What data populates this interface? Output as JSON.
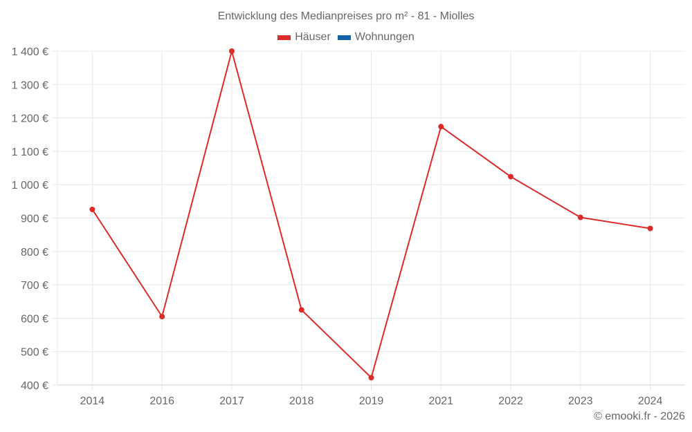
{
  "title": "Entwicklung des Medianpreises pro m² - 81 - Miolles",
  "legend": [
    {
      "label": "Häuser",
      "color": "#dd2a2a"
    },
    {
      "label": "Wohnungen",
      "color": "#1565a6"
    }
  ],
  "credit": "© emooki.fr - 2026",
  "colors": {
    "line": "#dd2a2a",
    "grid": "#e8e8e8",
    "axis": "#cccccc",
    "text": "#666666"
  },
  "chart_data": {
    "type": "line",
    "title": "Entwicklung des Medianpreises pro m² - 81 - Miolles",
    "xlabel": "",
    "ylabel": "",
    "categories": [
      "2014",
      "2016",
      "2017",
      "2018",
      "2019",
      "2021",
      "2022",
      "2023",
      "2024"
    ],
    "series": [
      {
        "name": "Häuser",
        "color": "#dd2a2a",
        "values": [
          926,
          605,
          1400,
          625,
          422,
          1174,
          1024,
          902,
          869
        ]
      },
      {
        "name": "Wohnungen",
        "color": "#1565a6",
        "values": []
      }
    ],
    "ylim": [
      400,
      1400
    ],
    "yticks": [
      400,
      500,
      600,
      700,
      800,
      900,
      1000,
      1100,
      1200,
      1300,
      1400
    ],
    "ytick_labels": [
      "400 €",
      "500 €",
      "600 €",
      "700 €",
      "800 €",
      "900 €",
      "1 000 €",
      "1 100 €",
      "1 200 €",
      "1 300 €",
      "1 400 €"
    ],
    "grid": true,
    "legend_position": "top"
  }
}
